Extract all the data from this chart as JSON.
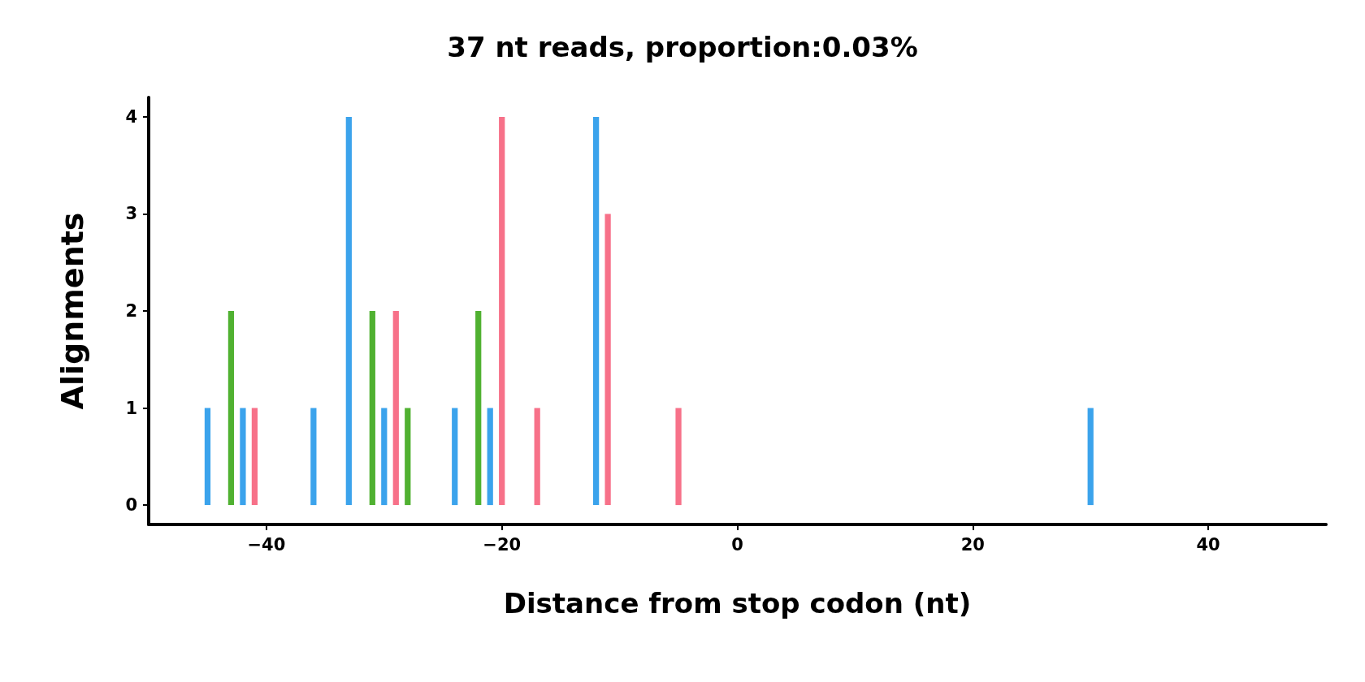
{
  "chart_data": {
    "type": "bar",
    "title": "37 nt reads, proportion:0.03%",
    "xlabel": "Distance from stop codon (nt)",
    "ylabel": "Alignments",
    "series": [
      {
        "color": "#3ba3ec",
        "x": [
          -45,
          -42,
          -36,
          -33,
          -30,
          -24,
          -21,
          -12,
          30
        ],
        "values": [
          1,
          1,
          1,
          4,
          1,
          1,
          1,
          4,
          1
        ]
      },
      {
        "color": "#f77189",
        "x": [
          -41,
          -29,
          -20,
          -17,
          -11,
          -5
        ],
        "values": [
          1,
          2,
          4,
          1,
          3,
          1
        ]
      },
      {
        "color": "#50b131",
        "x": [
          -43,
          -31,
          -28,
          -22
        ],
        "values": [
          2,
          2,
          1,
          2
        ]
      }
    ],
    "xlim": [
      -50,
      50
    ],
    "xticks": [
      {
        "value": -40,
        "label": "−40"
      },
      {
        "value": -20,
        "label": "−20"
      },
      0,
      20,
      40
    ],
    "ylim": [
      -0.2,
      4.2
    ],
    "yticks": [
      0,
      1,
      2,
      3,
      4
    ],
    "grid": false
  }
}
